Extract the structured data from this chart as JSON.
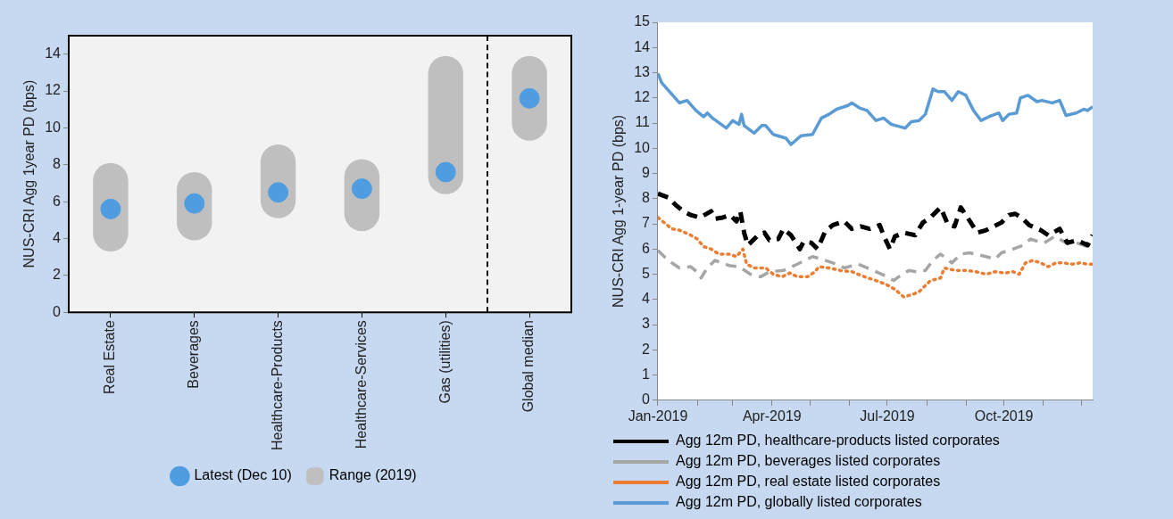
{
  "chart_data": [
    {
      "type": "bar",
      "ylabel": "NUS-CRI Agg 1year PD (bps)",
      "categories": [
        "Real Estate",
        "Beverages",
        "Healthcare-Products",
        "Healthcare-Services",
        "Gas (utilities)",
        "Global median"
      ],
      "ylim": [
        0,
        15
      ],
      "yticks": [
        0,
        2,
        4,
        6,
        8,
        10,
        12,
        14
      ],
      "legend": "bottom",
      "series": [
        {
          "name": "Latest (Dec 10)",
          "type": "scatter",
          "marker": "circle",
          "color": "#4f9de0",
          "x": [
            "Real Estate",
            "Beverages",
            "Healthcare-Products",
            "Healthcare-Services",
            "Gas (utilities)",
            "Global median"
          ],
          "values": [
            5.6,
            5.9,
            6.5,
            6.7,
            7.6,
            11.6
          ]
        },
        {
          "name": "Range (2019)",
          "type": "bar",
          "color": "#bfbfbf",
          "base": [
            3.3,
            3.9,
            5.1,
            4.4,
            6.4,
            9.3
          ],
          "values": [
            4.8,
            3.7,
            4.0,
            3.9,
            7.5,
            4.6
          ]
        }
      ]
    },
    {
      "type": "line",
      "ylabel": "NUS-CRI Agg 1-year PD (bps)",
      "xlim": [
        "2019-01-01",
        "2019-12-10"
      ],
      "xticks": [
        {
          "value": "2019-01-01",
          "label": "Jan-2019"
        },
        {
          "value": "2019-02-01",
          "label": null
        },
        {
          "value": "2019-03-01",
          "label": null
        },
        {
          "value": "2019-04-01",
          "label": "Apr-2019"
        },
        {
          "value": "2019-05-01",
          "label": null
        },
        {
          "value": "2019-06-01",
          "label": null
        },
        {
          "value": "2019-07-01",
          "label": "Jul-2019"
        },
        {
          "value": "2019-08-01",
          "label": null
        },
        {
          "value": "2019-09-01",
          "label": null
        },
        {
          "value": "2019-10-01",
          "label": "Oct-2019"
        },
        {
          "value": "2019-11-01",
          "label": null
        },
        {
          "value": "2019-12-01",
          "label": null
        }
      ],
      "ylim": [
        0,
        15
      ],
      "yticks": [
        0,
        1,
        2,
        3,
        4,
        5,
        6,
        7,
        8,
        9,
        10,
        11,
        12,
        13,
        14,
        15
      ],
      "legend": "bottom",
      "marker": "none",
      "series": [
        {
          "name": "Agg 12m PD, healthcare-products listed corporates",
          "color": "#000000",
          "line_style": "dashed",
          "x": [
            "2019-01-01",
            "2019-01-09",
            "2019-01-15",
            "2019-01-21",
            "2019-01-27",
            "2019-02-03",
            "2019-02-12",
            "2019-02-15",
            "2019-02-21",
            "2019-02-27",
            "2019-03-04",
            "2019-03-07",
            "2019-03-10",
            "2019-03-13",
            "2019-03-21",
            "2019-03-26",
            "2019-03-30",
            "2019-04-06",
            "2019-04-10",
            "2019-04-16",
            "2019-04-23",
            "2019-04-26",
            "2019-05-02",
            "2019-05-07",
            "2019-05-13",
            "2019-05-19",
            "2019-05-28",
            "2019-06-03",
            "2019-06-10",
            "2019-06-17",
            "2019-06-25",
            "2019-06-28",
            "2019-07-03",
            "2019-07-07",
            "2019-07-14",
            "2019-07-23",
            "2019-07-29",
            "2019-08-04",
            "2019-08-12",
            "2019-08-18",
            "2019-08-23",
            "2019-08-28",
            "2019-09-01",
            "2019-09-10",
            "2019-09-17",
            "2019-09-23",
            "2019-09-29",
            "2019-10-05",
            "2019-10-10",
            "2019-10-16",
            "2019-10-21",
            "2019-10-30",
            "2019-11-05",
            "2019-11-14",
            "2019-11-20",
            "2019-11-28",
            "2019-12-06",
            "2019-12-10"
          ],
          "values": [
            8.2,
            8.05,
            7.75,
            7.5,
            7.35,
            7.25,
            7.5,
            7.2,
            7.25,
            7.35,
            7.1,
            7.5,
            6.65,
            6.15,
            6.55,
            6.65,
            6.35,
            6.4,
            6.8,
            6.55,
            6.0,
            6.3,
            6.25,
            6.0,
            6.7,
            6.95,
            7.1,
            6.8,
            6.9,
            6.8,
            6.95,
            6.55,
            6.0,
            6.5,
            6.65,
            6.55,
            7.05,
            7.25,
            7.65,
            6.95,
            6.9,
            7.65,
            7.35,
            6.65,
            6.75,
            6.9,
            7.05,
            7.35,
            7.4,
            7.2,
            6.95,
            6.75,
            6.55,
            6.8,
            6.25,
            6.35,
            6.15,
            6.55
          ]
        },
        {
          "name": "Agg 12m PD, beverages listed corporates",
          "color": "#a6a6a6",
          "line_style": "dashed",
          "x": [
            "2019-01-01",
            "2019-01-06",
            "2019-01-12",
            "2019-01-18",
            "2019-01-27",
            "2019-02-03",
            "2019-02-04",
            "2019-02-09",
            "2019-02-15",
            "2019-02-26",
            "2019-03-06",
            "2019-03-15",
            "2019-03-23",
            "2019-03-30",
            "2019-04-10",
            "2019-04-21",
            "2019-05-03",
            "2019-05-10",
            "2019-05-19",
            "2019-05-28",
            "2019-06-08",
            "2019-06-22",
            "2019-07-01",
            "2019-07-06",
            "2019-07-10",
            "2019-07-18",
            "2019-07-24",
            "2019-07-31",
            "2019-08-06",
            "2019-08-12",
            "2019-08-21",
            "2019-08-28",
            "2019-09-04",
            "2019-09-17",
            "2019-09-24",
            "2019-09-29",
            "2019-10-08",
            "2019-10-16",
            "2019-10-22",
            "2019-10-28",
            "2019-11-02",
            "2019-11-10",
            "2019-11-19",
            "2019-11-27",
            "2019-12-06",
            "2019-12-10"
          ],
          "values": [
            5.95,
            5.7,
            5.45,
            5.25,
            5.3,
            5.0,
            4.85,
            5.25,
            5.55,
            5.35,
            5.3,
            5.0,
            4.9,
            5.1,
            5.15,
            5.4,
            5.7,
            5.6,
            5.45,
            5.25,
            5.4,
            5.1,
            4.9,
            4.75,
            4.9,
            5.15,
            5.1,
            5.15,
            5.55,
            5.8,
            5.45,
            5.8,
            5.85,
            5.7,
            5.6,
            5.85,
            6.0,
            6.15,
            6.4,
            6.3,
            6.25,
            6.5,
            6.25,
            6.25,
            6.1,
            6.1
          ]
        },
        {
          "name": "Agg 12m PD, real estate listed corporates",
          "color": "#ed7d31",
          "line_style": "dotted",
          "x": [
            "2019-01-01",
            "2019-01-06",
            "2019-01-12",
            "2019-01-18",
            "2019-01-27",
            "2019-02-01",
            "2019-02-06",
            "2019-02-12",
            "2019-02-18",
            "2019-02-26",
            "2019-03-04",
            "2019-03-09",
            "2019-03-12",
            "2019-03-18",
            "2019-03-27",
            "2019-04-02",
            "2019-04-09",
            "2019-04-15",
            "2019-04-21",
            "2019-04-29",
            "2019-05-05",
            "2019-05-08",
            "2019-05-16",
            "2019-05-25",
            "2019-06-03",
            "2019-06-13",
            "2019-06-22",
            "2019-06-30",
            "2019-07-07",
            "2019-07-14",
            "2019-07-21",
            "2019-07-26",
            "2019-07-31",
            "2019-08-04",
            "2019-08-12",
            "2019-08-15",
            "2019-08-24",
            "2019-09-01",
            "2019-09-09",
            "2019-09-17",
            "2019-09-24",
            "2019-10-02",
            "2019-10-08",
            "2019-10-13",
            "2019-10-18",
            "2019-10-24",
            "2019-10-30",
            "2019-11-05",
            "2019-11-11",
            "2019-11-17",
            "2019-11-24",
            "2019-11-30",
            "2019-12-06",
            "2019-12-10"
          ],
          "values": [
            7.25,
            7.05,
            6.8,
            6.75,
            6.55,
            6.4,
            6.1,
            6.0,
            5.8,
            5.8,
            5.7,
            6.0,
            5.4,
            5.25,
            5.25,
            5.0,
            4.9,
            5.05,
            4.9,
            4.9,
            5.1,
            5.3,
            5.25,
            5.15,
            5.1,
            4.9,
            4.75,
            4.6,
            4.4,
            4.1,
            4.2,
            4.3,
            4.55,
            4.75,
            4.85,
            5.25,
            5.15,
            5.15,
            5.1,
            5.0,
            5.1,
            5.05,
            5.1,
            5.0,
            5.45,
            5.55,
            5.45,
            5.3,
            5.45,
            5.45,
            5.4,
            5.45,
            5.4,
            5.4
          ]
        },
        {
          "name": "Agg 12m PD, globally listed corporates",
          "color": "#5b9bd5",
          "line_style": "solid",
          "x": [
            "2019-01-01",
            "2019-01-04",
            "2019-01-11",
            "2019-01-18",
            "2019-01-24",
            "2019-01-31",
            "2019-02-06",
            "2019-02-09",
            "2019-02-13",
            "2019-02-24",
            "2019-03-01",
            "2019-03-06",
            "2019-03-08",
            "2019-03-10",
            "2019-03-18",
            "2019-03-24",
            "2019-03-27",
            "2019-04-02",
            "2019-04-12",
            "2019-04-16",
            "2019-04-24",
            "2019-05-03",
            "2019-05-10",
            "2019-05-16",
            "2019-05-22",
            "2019-05-31",
            "2019-06-03",
            "2019-06-09",
            "2019-06-15",
            "2019-06-22",
            "2019-06-28",
            "2019-07-04",
            "2019-07-15",
            "2019-07-20",
            "2019-07-26",
            "2019-07-31",
            "2019-08-06",
            "2019-08-10",
            "2019-08-15",
            "2019-08-21",
            "2019-08-26",
            "2019-09-01",
            "2019-09-07",
            "2019-09-13",
            "2019-09-19",
            "2019-09-27",
            "2019-09-30",
            "2019-10-05",
            "2019-10-11",
            "2019-10-14",
            "2019-10-20",
            "2019-10-27",
            "2019-10-31",
            "2019-11-08",
            "2019-11-14",
            "2019-11-19",
            "2019-11-27",
            "2019-12-03",
            "2019-12-06",
            "2019-12-10"
          ],
          "values": [
            12.97,
            12.6,
            12.2,
            11.8,
            11.9,
            11.5,
            11.25,
            11.4,
            11.2,
            10.8,
            11.1,
            10.95,
            11.35,
            10.9,
            10.6,
            10.9,
            10.9,
            10.55,
            10.4,
            10.15,
            10.5,
            10.55,
            11.2,
            11.35,
            11.55,
            11.7,
            11.8,
            11.6,
            11.5,
            11.1,
            11.2,
            10.95,
            10.8,
            11.05,
            11.1,
            11.35,
            12.35,
            12.25,
            12.25,
            11.9,
            12.25,
            12.1,
            11.5,
            11.1,
            11.25,
            11.4,
            11.1,
            11.35,
            11.4,
            12.0,
            12.1,
            11.85,
            11.9,
            11.8,
            11.9,
            11.3,
            11.4,
            11.55,
            11.5,
            11.65
          ]
        }
      ]
    }
  ]
}
